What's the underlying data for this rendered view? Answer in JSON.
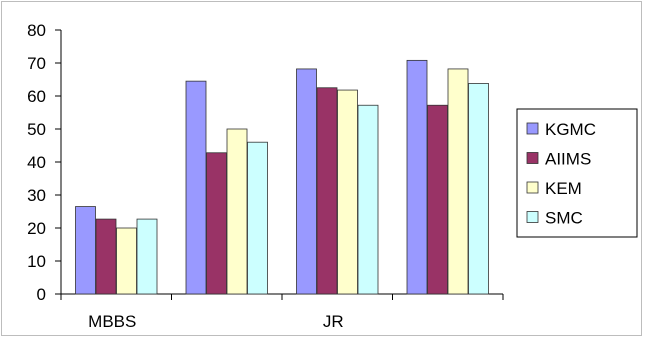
{
  "chart_data": {
    "type": "bar",
    "title": "",
    "xlabel": "",
    "ylabel": "",
    "categories": [
      "MBBS",
      "",
      "JR",
      ""
    ],
    "ylim": [
      0,
      80
    ],
    "yticks": [
      0,
      10,
      20,
      30,
      40,
      50,
      60,
      70,
      80
    ],
    "grid": false,
    "legend_position": "right",
    "series": [
      {
        "name": "KGMC",
        "color": "#9999ff",
        "values": [
          26.5,
          64.5,
          68.2,
          70.8
        ]
      },
      {
        "name": "AIIMS",
        "color": "#993366",
        "values": [
          22.7,
          42.8,
          62.5,
          57.2
        ]
      },
      {
        "name": "KEM",
        "color": "#ffffcc",
        "values": [
          20.0,
          50.0,
          61.8,
          68.2
        ]
      },
      {
        "name": "SMC",
        "color": "#ccffff",
        "values": [
          22.7,
          46.0,
          57.2,
          63.8
        ]
      }
    ]
  }
}
